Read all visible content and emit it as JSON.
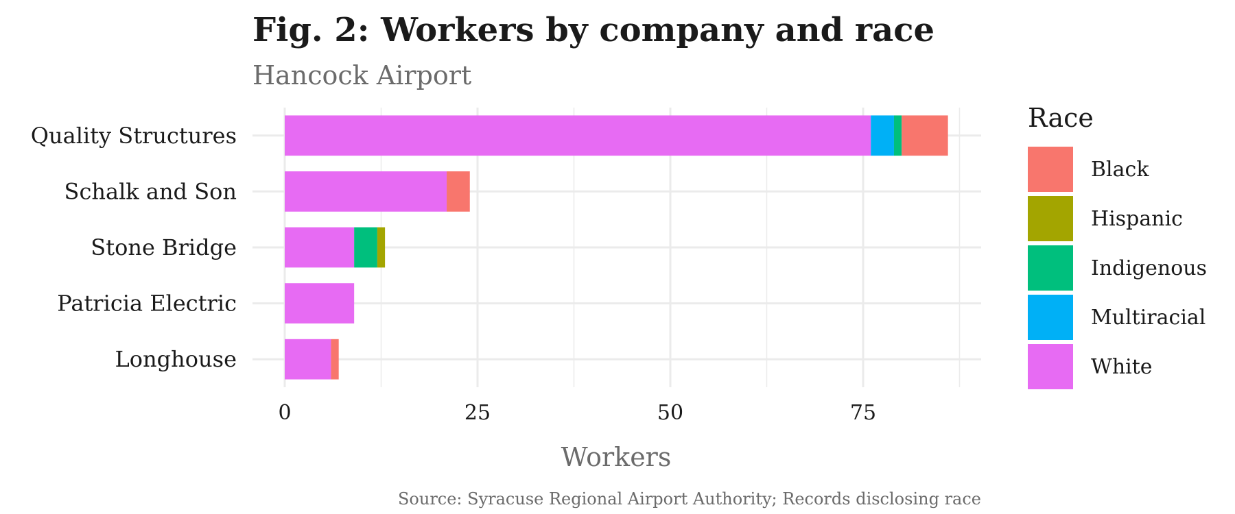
{
  "chart_data": {
    "type": "bar",
    "orientation": "horizontal",
    "stacked": true,
    "title": "Fig. 2: Workers by company and race",
    "subtitle": "Hancock Airport",
    "xlabel": "Workers",
    "ylabel": "",
    "caption": "Source: Syracuse Regional Airport Authority; Records disclosing race",
    "xlim": [
      0,
      90
    ],
    "x_ticks": [
      0,
      25,
      50,
      75
    ],
    "grid": true,
    "legend": {
      "title": "Race",
      "position": "right"
    },
    "categories": [
      "Quality Structures",
      "Schalk and Son",
      "Stone Bridge",
      "Patricia Electric",
      "Longhouse"
    ],
    "stack_order": [
      "White",
      "Multiracial",
      "Indigenous",
      "Hispanic",
      "Black"
    ],
    "series": [
      {
        "name": "Black",
        "color": "#F8766D",
        "values": [
          6,
          3,
          0,
          0,
          1
        ]
      },
      {
        "name": "Hispanic",
        "color": "#A3A500",
        "values": [
          0,
          0,
          1,
          0,
          0
        ]
      },
      {
        "name": "Indigenous",
        "color": "#00BF7D",
        "values": [
          1,
          0,
          3,
          0,
          0
        ]
      },
      {
        "name": "Multiracial",
        "color": "#00B0F6",
        "values": [
          3,
          0,
          0,
          0,
          0
        ]
      },
      {
        "name": "White",
        "color": "#E76BF3",
        "values": [
          76,
          21,
          9,
          9,
          6
        ]
      }
    ]
  }
}
